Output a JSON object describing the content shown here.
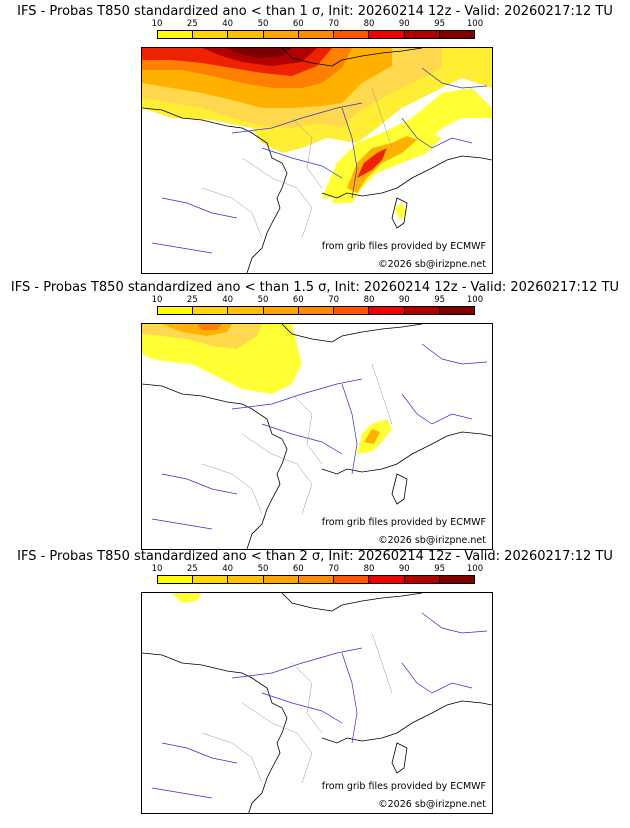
{
  "colorbar": {
    "labels": [
      "10",
      "25",
      "40",
      "50",
      "60",
      "70",
      "80",
      "90",
      "95",
      "100"
    ],
    "colors": [
      "#ffff00",
      "#ffd700",
      "#ffc000",
      "#ffa500",
      "#ff8c00",
      "#ff5500",
      "#ee0000",
      "#b00000",
      "#800000"
    ]
  },
  "credits": {
    "source": "from grib files provided by ECMWF",
    "copyright": "©2026 sb@irizpne.net"
  },
  "panels": [
    {
      "title": "IFS - Probas T850  standardized ano < than 1 σ, Init: 20260214 12z - Valid: 20260217:12 TU"
    },
    {
      "title": "IFS - Probas T850  standardized ano < than 1.5 σ, Init: 20260214 12z - Valid: 20260217:12 TU"
    },
    {
      "title": "IFS - Probas T850  standardized ano < than 2 σ, Init: 20260214 12z - Valid: 20260217:12 TU"
    }
  ]
}
